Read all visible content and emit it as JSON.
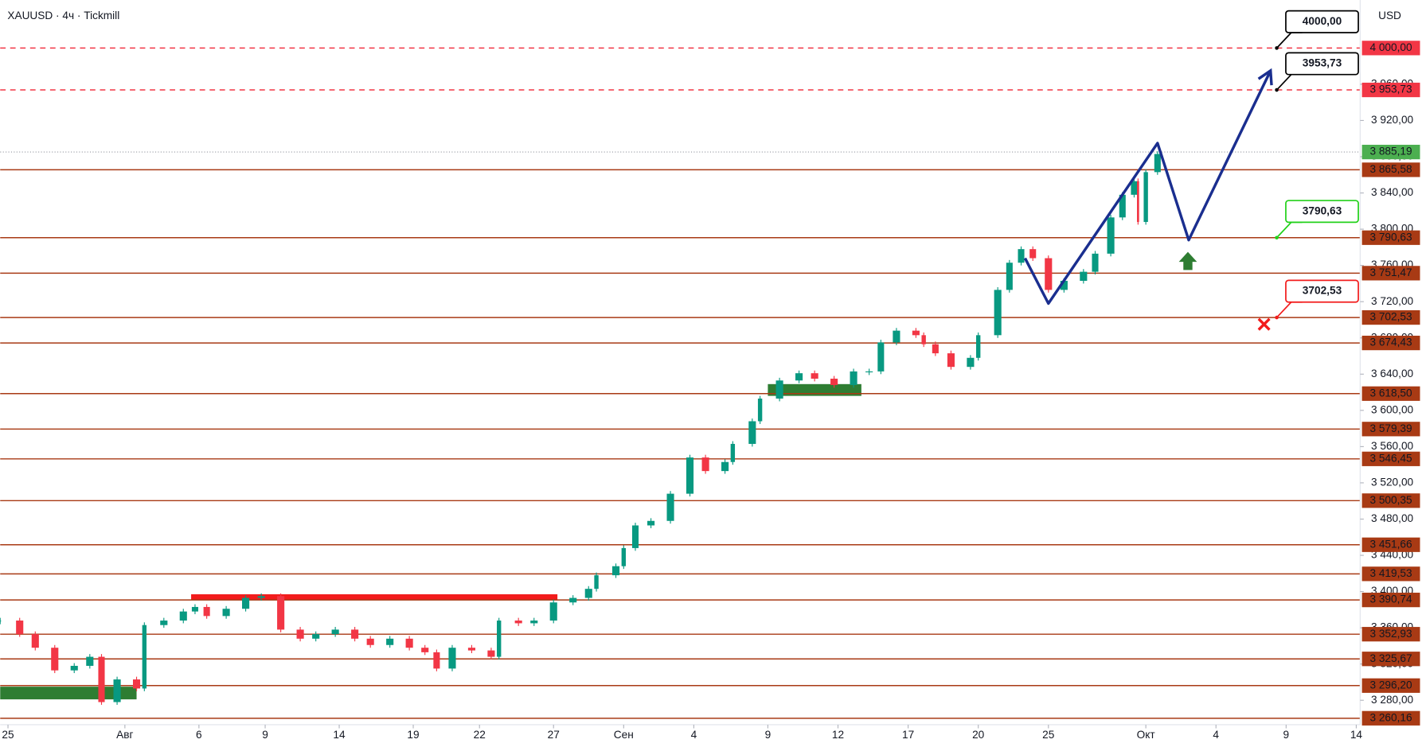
{
  "chart_data": {
    "type": "candlestick",
    "title": "XAUUSD · 4ч · Tickmill",
    "currency": "USD",
    "xlim": [
      0,
      349
    ],
    "ylim": [
      3253,
      4053
    ],
    "xticks": [
      {
        "value": 2,
        "label": "25"
      },
      {
        "value": 32,
        "label": "Авг"
      },
      {
        "value": 51,
        "label": "6"
      },
      {
        "value": 68,
        "label": "9"
      },
      {
        "value": 87,
        "label": "14"
      },
      {
        "value": 106,
        "label": "19"
      },
      {
        "value": 123,
        "label": "22"
      },
      {
        "value": 142,
        "label": "27"
      },
      {
        "value": 160,
        "label": "Сен"
      },
      {
        "value": 178,
        "label": "4"
      },
      {
        "value": 197,
        "label": "9"
      },
      {
        "value": 215,
        "label": "12"
      },
      {
        "value": 233,
        "label": "17"
      },
      {
        "value": 251,
        "label": "20"
      },
      {
        "value": 269,
        "label": "25"
      },
      {
        "value": 294,
        "label": "Окт"
      },
      {
        "value": 312,
        "label": "4"
      },
      {
        "value": 330,
        "label": "9"
      },
      {
        "value": 348,
        "label": "14"
      }
    ],
    "yticks": [
      {
        "value": 3280,
        "label": "3 280,00"
      },
      {
        "value": 3320,
        "label": "3 320,00"
      },
      {
        "value": 3360,
        "label": "3 360,00"
      },
      {
        "value": 3400,
        "label": "3 400,00"
      },
      {
        "value": 3440,
        "label": "3 440,00"
      },
      {
        "value": 3480,
        "label": "3 480,00"
      },
      {
        "value": 3520,
        "label": "3 520,00"
      },
      {
        "value": 3560,
        "label": "3 560,00"
      },
      {
        "value": 3600,
        "label": "3 600,00"
      },
      {
        "value": 3640,
        "label": "3 640,00"
      },
      {
        "value": 3680,
        "label": "3 680,00"
      },
      {
        "value": 3720,
        "label": "3 720,00"
      },
      {
        "value": 3760,
        "label": "3 760,00"
      },
      {
        "value": 3800,
        "label": "3 800,00"
      },
      {
        "value": 3840,
        "label": "3 840,00"
      },
      {
        "value": 3880,
        "label": "3 880,00"
      },
      {
        "value": 3920,
        "label": "3 920,00"
      },
      {
        "value": 3960,
        "label": "3 960,00"
      }
    ],
    "up_color": "#089981",
    "down_color": "#f23645",
    "x": [
      0,
      5,
      9,
      14,
      19,
      23,
      26,
      30,
      35,
      37,
      42,
      47,
      50,
      53,
      58,
      63,
      67,
      72,
      77,
      81,
      86,
      91,
      95,
      100,
      105,
      109,
      112,
      116,
      121,
      126,
      128,
      133,
      137,
      142,
      147,
      151,
      153,
      158,
      160,
      163,
      167,
      172,
      177,
      181,
      186,
      188,
      193,
      195,
      200,
      205,
      209,
      214,
      219,
      223,
      226,
      230,
      235,
      237,
      240,
      244,
      249,
      251,
      256,
      259,
      262,
      265,
      269,
      273,
      278,
      281,
      285,
      288,
      291,
      292,
      294,
      297
    ],
    "values": [
      3368,
      3353,
      3338,
      3313,
      3318,
      3328,
      3278,
      3303,
      3293,
      3363,
      3368,
      3378,
      3383,
      3373,
      3381,
      3393,
      3395,
      3358,
      3348,
      3353,
      3358,
      3348,
      3341,
      3348,
      3338,
      3333,
      3315,
      3338,
      3335,
      3328,
      3368,
      3365,
      3368,
      3388,
      3393,
      3403,
      3418,
      3428,
      3448,
      3473,
      3478,
      3508,
      3548,
      3533,
      3543,
      3563,
      3588,
      3613,
      3633,
      3641,
      3635,
      3628,
      3643,
      3643,
      3675,
      3688,
      3683,
      3673,
      3663,
      3648,
      3658,
      3683,
      3733,
      3763,
      3778,
      3768,
      3733,
      3743,
      3753,
      3773,
      3813,
      3838,
      3853,
      3808,
      3863,
      3883
    ],
    "current_price": {
      "value": 3885.19,
      "label": "3 885,19",
      "color": "#4caf50"
    },
    "levels": [
      {
        "value": 4000,
        "label": "4 000,00",
        "style": "dashed",
        "color": "#f23645"
      },
      {
        "value": 3953.73,
        "label": "3 953,73",
        "style": "dashed",
        "color": "#f23645"
      },
      {
        "value": 3865.58,
        "label": "3 865,58",
        "style": "solid",
        "color": "#a83a14"
      },
      {
        "value": 3790.63,
        "label": "3 790,63",
        "style": "solid",
        "color": "#a83a14"
      },
      {
        "value": 3751.47,
        "label": "3 751,47",
        "style": "solid",
        "color": "#a83a14"
      },
      {
        "value": 3702.53,
        "label": "3 702,53",
        "style": "solid",
        "color": "#a83a14"
      },
      {
        "value": 3674.43,
        "label": "3 674,43",
        "style": "solid",
        "color": "#a83a14"
      },
      {
        "value": 3618.5,
        "label": "3 618,50",
        "style": "solid",
        "color": "#a83a14"
      },
      {
        "value": 3579.39,
        "label": "3 579,39",
        "style": "solid",
        "color": "#a83a14"
      },
      {
        "value": 3546.45,
        "label": "3 546,45",
        "style": "solid",
        "color": "#a83a14"
      },
      {
        "value": 3500.35,
        "label": "3 500,35",
        "style": "solid",
        "color": "#a83a14"
      },
      {
        "value": 3451.66,
        "label": "3 451,66",
        "style": "solid",
        "color": "#a83a14"
      },
      {
        "value": 3419.53,
        "label": "3 419,53",
        "style": "solid",
        "color": "#a83a14"
      },
      {
        "value": 3390.74,
        "label": "3 390,74",
        "style": "solid",
        "color": "#a83a14"
      },
      {
        "value": 3352.93,
        "label": "3 352,93",
        "style": "solid",
        "color": "#a83a14"
      },
      {
        "value": 3325.67,
        "label": "3 325,67",
        "style": "solid",
        "color": "#a83a14"
      },
      {
        "value": 3296.2,
        "label": "3 296,20",
        "style": "solid",
        "color": "#a83a14"
      },
      {
        "value": 3260.16,
        "label": "3 260,16",
        "style": "solid",
        "color": "#a83a14"
      }
    ],
    "zones": [
      {
        "x": [
          0,
          35
        ],
        "y": [
          3281,
          3295
        ],
        "color": "#2e7d32"
      },
      {
        "x": [
          197,
          221
        ],
        "y": [
          3616,
          3629
        ],
        "color": "#2e7d32"
      },
      {
        "x": [
          49,
          143
        ],
        "y": [
          3391,
          3397
        ],
        "color": "#f21c1c"
      }
    ],
    "forecast": {
      "x": [
        263,
        269,
        297,
        305,
        326
      ],
      "values": [
        3768,
        3718,
        3895,
        3788,
        3975
      ],
      "color": "#1a2e8f"
    },
    "annotations": [
      {
        "text": "4000,00",
        "value": 4000,
        "color": "#000000"
      },
      {
        "text": "3953,73",
        "value": 3953.73,
        "color": "#000000"
      },
      {
        "text": "3790,63",
        "value": 3790.63,
        "color": "#22d11a"
      },
      {
        "text": "3702,53",
        "value": 3702.53,
        "color": "#f21c1c"
      }
    ]
  }
}
